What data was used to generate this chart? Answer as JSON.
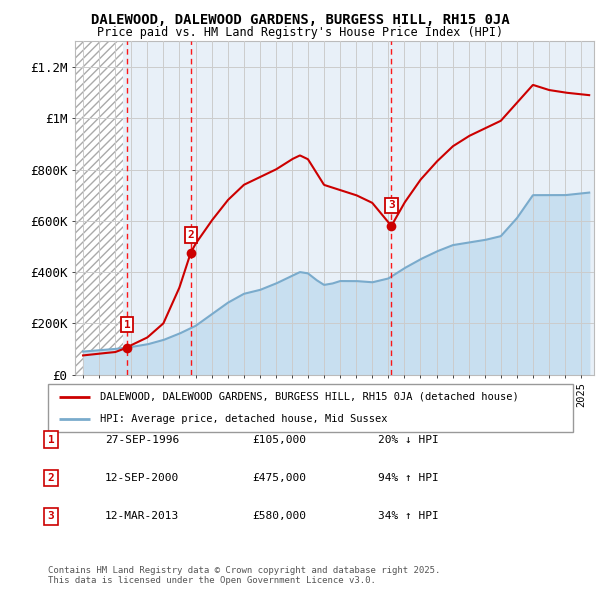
{
  "title": "DALEWOOD, DALEWOOD GARDENS, BURGESS HILL, RH15 0JA",
  "subtitle": "Price paid vs. HM Land Registry's House Price Index (HPI)",
  "xlim_start": 1993.5,
  "xlim_end": 2025.8,
  "ylim": [
    0,
    1300000
  ],
  "yticks": [
    0,
    200000,
    400000,
    600000,
    800000,
    1000000,
    1200000
  ],
  "ytick_labels": [
    "£0",
    "£200K",
    "£400K",
    "£600K",
    "£800K",
    "£1M",
    "£1.2M"
  ],
  "transactions": [
    {
      "date_num": 1996.74,
      "price": 105000,
      "label": "1"
    },
    {
      "date_num": 2000.7,
      "price": 475000,
      "label": "2"
    },
    {
      "date_num": 2013.19,
      "price": 580000,
      "label": "3"
    }
  ],
  "transaction_line_color": "#cc0000",
  "transaction_dot_color": "#cc0000",
  "hpi_line_color": "#7aabcc",
  "hpi_area_color": "#c8dff0",
  "legend_entries": [
    "DALEWOOD, DALEWOOD GARDENS, BURGESS HILL, RH15 0JA (detached house)",
    "HPI: Average price, detached house, Mid Sussex"
  ],
  "table_rows": [
    {
      "num": "1",
      "date": "27-SEP-1996",
      "price": "£105,000",
      "hpi": "20% ↓ HPI"
    },
    {
      "num": "2",
      "date": "12-SEP-2000",
      "price": "£475,000",
      "hpi": "94% ↑ HPI"
    },
    {
      "num": "3",
      "date": "12-MAR-2013",
      "price": "£580,000",
      "hpi": "34% ↑ HPI"
    }
  ],
  "footnote": "Contains HM Land Registry data © Crown copyright and database right 2025.\nThis data is licensed under the Open Government Licence v3.0.",
  "grid_color": "#cccccc",
  "hatch_end": 1996.5
}
